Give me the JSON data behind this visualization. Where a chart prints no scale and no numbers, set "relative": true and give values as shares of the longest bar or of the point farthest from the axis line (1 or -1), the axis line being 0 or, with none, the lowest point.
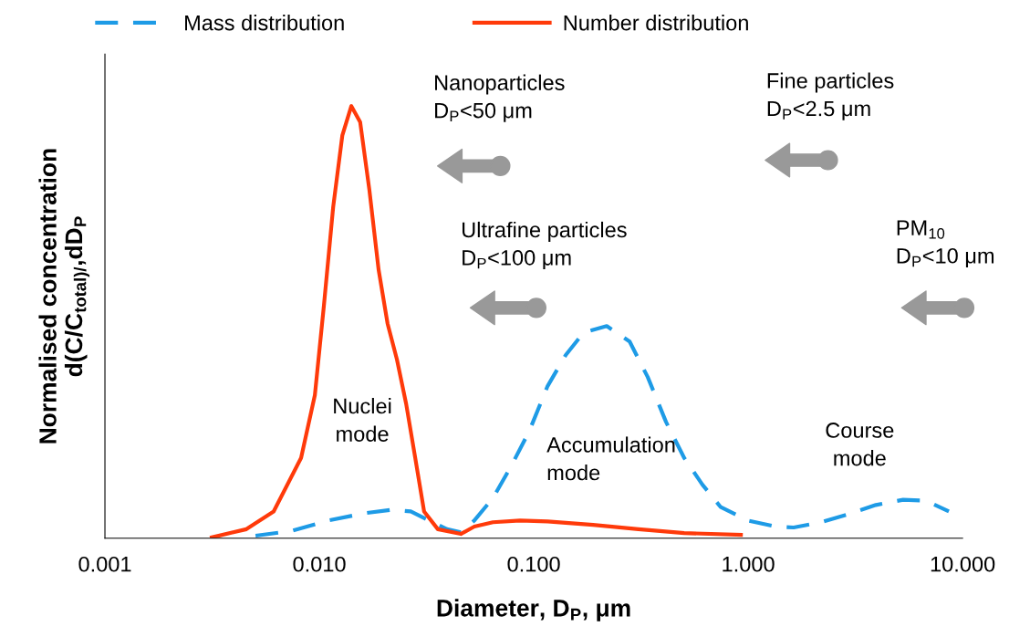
{
  "chart_data": {
    "type": "line",
    "relative": true,
    "log": "x",
    "xlabel": "Diameter, D$_{P}$, μm",
    "ylabel": "Normalised concentration\nd(C/C$_{total)/}$,dD$_{P}$",
    "xlim": [
      0.001,
      10
    ],
    "xticks": [
      {
        "value": 0.001,
        "label": "0.001"
      },
      {
        "value": 0.01,
        "label": "0.010"
      },
      {
        "value": 0.1,
        "label": "0.100"
      },
      {
        "value": 1,
        "label": "1.000"
      },
      {
        "value": 10,
        "label": "10.000"
      }
    ],
    "grid": false,
    "legend": "top",
    "tick_labels": "x",
    "marker": "none",
    "series": [
      {
        "name": "Mass distribution",
        "color": "#1e9be6",
        "line_style": "dashed",
        "x": [
          0.00504,
          0.00745,
          0.011,
          0.0163,
          0.0219,
          0.0267,
          0.0325,
          0.0394,
          0.0457,
          0.0528,
          0.0645,
          0.0783,
          0.0953,
          0.116,
          0.141,
          0.171,
          0.219,
          0.28,
          0.34,
          0.414,
          0.503,
          0.612,
          0.745,
          1.0,
          1.34,
          1.63,
          2.19,
          2.94,
          3.94,
          5.28,
          6.76,
          8.63
        ],
        "values": [
          0.006,
          0.017,
          0.041,
          0.058,
          0.066,
          0.062,
          0.041,
          0.021,
          0.014,
          0.041,
          0.093,
          0.166,
          0.248,
          0.352,
          0.424,
          0.476,
          0.491,
          0.455,
          0.373,
          0.269,
          0.186,
          0.124,
          0.072,
          0.041,
          0.027,
          0.025,
          0.037,
          0.056,
          0.077,
          0.089,
          0.087,
          0.062
        ]
      },
      {
        "name": "Number distribution",
        "color": "#ff3a0a",
        "line_style": "solid",
        "x": [
          0.00315,
          0.00457,
          0.00612,
          0.00822,
          0.00953,
          0.0105,
          0.0116,
          0.0128,
          0.0141,
          0.0155,
          0.0171,
          0.0189,
          0.0208,
          0.023,
          0.0254,
          0.028,
          0.0308,
          0.0357,
          0.0457,
          0.0528,
          0.0645,
          0.0863,
          0.116,
          0.189,
          0.308,
          0.503,
          0.925
        ],
        "values": [
          0.002,
          0.021,
          0.062,
          0.186,
          0.331,
          0.538,
          0.766,
          0.932,
          1,
          0.963,
          0.807,
          0.621,
          0.497,
          0.414,
          0.311,
          0.186,
          0.062,
          0.021,
          0.01,
          0.027,
          0.037,
          0.041,
          0.039,
          0.031,
          0.021,
          0.012,
          0.008
        ]
      }
    ],
    "annotations": [
      "Nanoparticles\nD$_{P}$<50 μm",
      "Fine particles\nD$_{P}$<2.5 μm",
      "Ultrafine particles\nD$_{P}$<100 μm",
      "PM$_{10}$\nD$_{P}$<10 μm",
      "Nuclei\nmode",
      "Accumulation\nmode",
      "Course\nmode"
    ]
  }
}
